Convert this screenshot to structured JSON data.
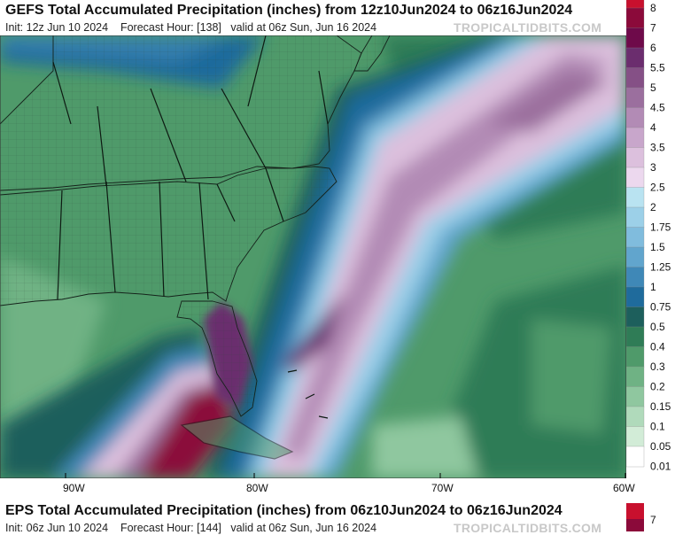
{
  "panel1": {
    "title": "GEFS Total Accumulated Precipitation (inches) from 12z10Jun2024 to 06z16Jun2024",
    "init": "Init: 12z Jun 10 2024",
    "forecast_hour": "Forecast Hour: [138]",
    "valid": "valid at 06z Sun, Jun 16 2024",
    "watermark": "TROPICALTIDBITS.COM"
  },
  "panel2": {
    "title": "EPS Total Accumulated Precipitation (inches) from 06z10Jun2024 to 06z16Jun2024",
    "init": "Init: 06z Jun 10 2024",
    "forecast_hour": "Forecast Hour: [144]",
    "valid": "valid at 06z Sun, Jun 16 2024",
    "watermark": "TROPICALTIDBITS.COM"
  },
  "longitude_labels": [
    "90W",
    "80W",
    "70W",
    "60W"
  ],
  "colorbar": {
    "levels": [
      "8",
      "7",
      "6",
      "5.5",
      "5",
      "4.5",
      "4",
      "3.5",
      "3",
      "2.5",
      "2",
      "1.75",
      "1.5",
      "1.25",
      "1",
      "0.75",
      "0.5",
      "0.4",
      "0.3",
      "0.2",
      "0.15",
      "0.1",
      "0.05",
      "0.01"
    ],
    "colors": [
      "#c8102e",
      "#8b0a3a",
      "#6e0a4a",
      "#6b2d6e",
      "#855086",
      "#9b6f9e",
      "#b28bb5",
      "#c8a6cb",
      "#dcc0dd",
      "#ecd8ee",
      "#b9e3f1",
      "#9cd0e8",
      "#80bcdd",
      "#61a5cd",
      "#3f88b7",
      "#1f6b9c",
      "#1d5f5c",
      "#2f7c56",
      "#4f9a6a",
      "#6fb284",
      "#8fc79f",
      "#b0dabb",
      "#d2ecd7",
      "#ffffff"
    ]
  },
  "panel2_colorbar": {
    "levels": [
      "7"
    ]
  }
}
